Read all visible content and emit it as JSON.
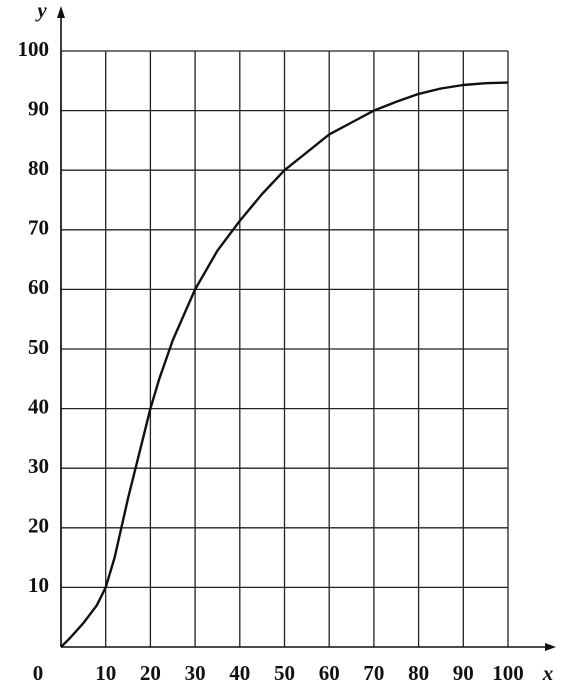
{
  "chart_data": {
    "type": "line",
    "x_label": "x",
    "y_label": "y",
    "x": [
      0,
      2,
      5,
      8,
      10,
      12,
      15,
      18,
      20,
      22,
      25,
      30,
      35,
      40,
      45,
      50,
      55,
      60,
      65,
      70,
      75,
      80,
      85,
      90,
      95,
      100
    ],
    "series": [
      {
        "color": "#111111",
        "values": [
          0,
          1.5,
          4,
          7,
          10,
          15,
          25,
          34,
          40,
          45,
          51.5,
          60,
          66.5,
          71.5,
          76,
          80,
          83,
          86,
          88,
          90,
          91.5,
          92.8,
          93.7,
          94.3,
          94.6,
          94.7
        ]
      }
    ],
    "xlim": [
      0,
      100
    ],
    "ylim": [
      0,
      100
    ],
    "xticks": [
      0,
      10,
      20,
      30,
      40,
      50,
      60,
      70,
      80,
      90,
      100
    ],
    "yticks": [
      10,
      20,
      30,
      40,
      50,
      60,
      70,
      80,
      90,
      100
    ],
    "grid": true
  }
}
